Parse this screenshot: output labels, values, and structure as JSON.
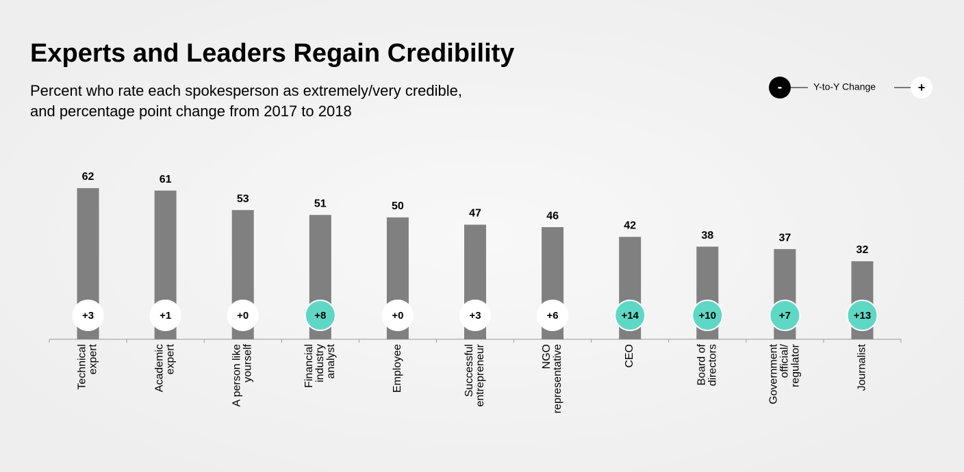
{
  "chart_data": {
    "type": "bar",
    "title": "Experts and Leaders Regain Credibility",
    "subtitle": [
      "Percent who rate each spokesperson as extremely/very credible,",
      "and percentage point change from 2017 to 2018"
    ],
    "categories": [
      [
        "Technical",
        "expert"
      ],
      [
        "Academic",
        "expert"
      ],
      [
        "A person like",
        "yourself"
      ],
      [
        "Financial",
        "industry",
        "analyst"
      ],
      [
        "Employee"
      ],
      [
        "Successful",
        "entrepreneur"
      ],
      [
        "NGO",
        "representative"
      ],
      [
        "CEO"
      ],
      [
        "Board of",
        "directors"
      ],
      [
        "Government",
        "official/",
        "regulator"
      ],
      [
        "Journalist"
      ]
    ],
    "values": [
      62,
      61,
      53,
      51,
      50,
      47,
      46,
      42,
      38,
      37,
      32
    ],
    "color": "#808080",
    "changes": [
      3,
      1,
      0,
      8,
      0,
      3,
      6,
      14,
      10,
      7,
      13
    ],
    "change_labels": [
      "+3",
      "+1",
      "+0",
      "+8",
      "+0",
      "+3",
      "+6",
      "+14",
      "+10",
      "+7",
      "+13"
    ],
    "change_colors": [
      "#ffffff",
      "#ffffff",
      "#ffffff",
      "#5ed8c4",
      "#ffffff",
      "#ffffff",
      "#ffffff",
      "#5ed8c4",
      "#5ed8c4",
      "#5ed8c4",
      "#5ed8c4"
    ],
    "ylim": [
      0,
      70
    ],
    "legend": {
      "minus": "-",
      "label": "Y-to-Y Change",
      "plus": "+"
    }
  }
}
